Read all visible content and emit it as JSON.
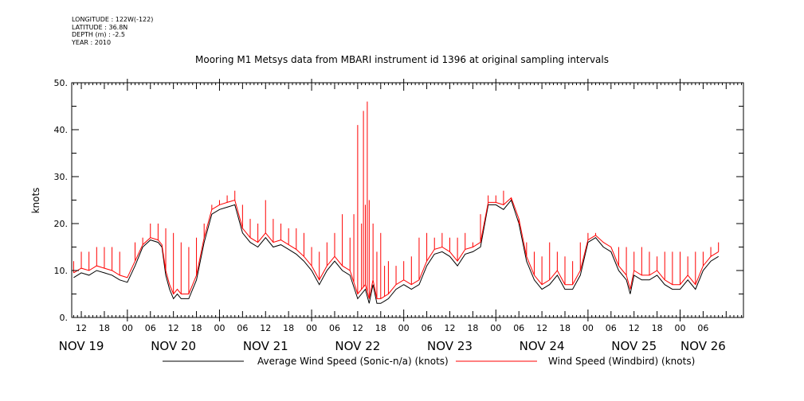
{
  "header": {
    "longitude": "LONGITUDE : 122W(-122)",
    "latitude": "LATITUDE : 36.8N",
    "depth": "DEPTH (m) : -2.5",
    "year": "YEAR : 2010"
  },
  "chart_data": {
    "type": "line",
    "title": "Mooring M1 Metsys data from MBARI instrument id 1396 at original sampling intervals",
    "ylabel": "knots",
    "xlabel": "",
    "ylim": [
      0,
      50
    ],
    "yticks": [
      0,
      10,
      20,
      30,
      40,
      50
    ],
    "ytick_labels": [
      "0.",
      "10.",
      "20.",
      "30.",
      "40.",
      "50."
    ],
    "xlim_hours": [
      -14.5,
      160.5
    ],
    "hour_tick_labels": [
      {
        "hour": -12,
        "label": "12"
      },
      {
        "hour": -6,
        "label": "18"
      },
      {
        "hour": 0,
        "label": "00"
      },
      {
        "hour": 6,
        "label": "06"
      },
      {
        "hour": 12,
        "label": "12"
      },
      {
        "hour": 18,
        "label": "18"
      },
      {
        "hour": 24,
        "label": "00"
      },
      {
        "hour": 30,
        "label": "06"
      },
      {
        "hour": 36,
        "label": "12"
      },
      {
        "hour": 42,
        "label": "18"
      },
      {
        "hour": 48,
        "label": "00"
      },
      {
        "hour": 54,
        "label": "06"
      },
      {
        "hour": 60,
        "label": "12"
      },
      {
        "hour": 66,
        "label": "18"
      },
      {
        "hour": 72,
        "label": "00"
      },
      {
        "hour": 78,
        "label": "06"
      },
      {
        "hour": 84,
        "label": "12"
      },
      {
        "hour": 90,
        "label": "18"
      },
      {
        "hour": 96,
        "label": "00"
      },
      {
        "hour": 102,
        "label": "06"
      },
      {
        "hour": 108,
        "label": "12"
      },
      {
        "hour": 114,
        "label": "18"
      },
      {
        "hour": 120,
        "label": "00"
      },
      {
        "hour": 126,
        "label": "06"
      },
      {
        "hour": 132,
        "label": "12"
      },
      {
        "hour": 138,
        "label": "18"
      },
      {
        "hour": 144,
        "label": "00"
      },
      {
        "hour": 150,
        "label": "06"
      }
    ],
    "date_labels": [
      {
        "hour": -12,
        "label": "NOV 19"
      },
      {
        "hour": 12,
        "label": "NOV 20"
      },
      {
        "hour": 36,
        "label": "NOV 21"
      },
      {
        "hour": 60,
        "label": "NOV 22"
      },
      {
        "hour": 84,
        "label": "NOV 23"
      },
      {
        "hour": 108,
        "label": "NOV 24"
      },
      {
        "hour": 132,
        "label": "NOV 25"
      },
      {
        "hour": 150,
        "label": "NOV 26"
      }
    ],
    "grid": false,
    "legend": "bottom",
    "series": [
      {
        "name": "Average Wind Speed (Sonic-n/a) (knots)",
        "color": "#000000",
        "x": [
          -14,
          -12,
          -10,
          -8,
          -6,
          -4,
          -2,
          0,
          2,
          4,
          6,
          8,
          9,
          10,
          11,
          12,
          13,
          14,
          16,
          18,
          19,
          20,
          22,
          24,
          26,
          28,
          30,
          32,
          34,
          36,
          38,
          40,
          42,
          44,
          46,
          48,
          50,
          52,
          54,
          56,
          58,
          60,
          62,
          63,
          64,
          65,
          66,
          67,
          68,
          70,
          72,
          74,
          76,
          78,
          80,
          82,
          84,
          86,
          88,
          90,
          92,
          94,
          96,
          98,
          100,
          102,
          104,
          106,
          108,
          110,
          112,
          114,
          116,
          118,
          120,
          122,
          124,
          126,
          128,
          130,
          131,
          132,
          134,
          136,
          138,
          140,
          142,
          144,
          146,
          148,
          150,
          152,
          154
        ],
        "y": [
          8.5,
          9.5,
          9,
          10,
          9.5,
          9,
          8,
          7.5,
          11,
          15,
          16.5,
          16,
          15,
          9,
          6,
          4,
          5,
          4,
          4,
          8,
          12,
          16,
          22,
          23,
          23.5,
          24,
          18,
          16,
          15,
          17,
          15,
          15.5,
          14.5,
          13.5,
          12,
          10,
          7,
          10,
          12,
          10,
          9,
          4,
          6,
          3,
          7,
          3,
          3,
          3.5,
          4,
          6,
          7,
          6,
          7,
          11,
          13.5,
          14,
          13,
          11,
          13.5,
          14,
          15,
          24,
          24,
          23,
          25,
          20,
          12,
          8,
          6,
          7,
          9,
          6,
          6,
          9,
          16,
          17,
          15,
          14,
          10,
          8,
          5,
          9,
          8,
          8,
          9,
          7,
          6,
          6,
          8,
          6,
          10,
          12,
          13
        ]
      },
      {
        "name": "Wind Speed (Windbird) (knots)",
        "color": "#ff0000",
        "x": [
          -14,
          -12,
          -10,
          -8,
          -6,
          -4,
          -2,
          0,
          2,
          4,
          6,
          8,
          9,
          10,
          11,
          12,
          13,
          14,
          16,
          18,
          19,
          20,
          22,
          24,
          26,
          28,
          30,
          32,
          34,
          36,
          38,
          40,
          42,
          44,
          46,
          48,
          50,
          52,
          54,
          56,
          58,
          60,
          62,
          63,
          64,
          65,
          66,
          67,
          68,
          70,
          72,
          74,
          76,
          78,
          80,
          82,
          84,
          86,
          88,
          90,
          92,
          94,
          96,
          98,
          100,
          102,
          104,
          106,
          108,
          110,
          112,
          114,
          116,
          118,
          120,
          122,
          124,
          126,
          128,
          130,
          131,
          132,
          134,
          136,
          138,
          140,
          142,
          144,
          146,
          148,
          150,
          152,
          154
        ],
        "y": [
          9.5,
          10.5,
          10,
          11,
          10.5,
          10,
          9,
          8.5,
          12,
          15.5,
          17,
          16.5,
          15.5,
          10,
          7,
          5,
          6,
          5,
          5,
          9,
          13,
          17,
          23,
          24,
          24.5,
          25,
          19,
          17,
          16,
          18,
          16,
          16.5,
          15.5,
          14.5,
          13,
          11,
          8,
          11,
          13,
          11,
          10,
          5,
          7,
          4,
          8,
          4,
          4,
          4.5,
          5,
          7,
          8,
          7,
          8,
          12,
          14.5,
          15,
          14,
          12,
          14.5,
          15,
          16,
          24.5,
          24.5,
          24,
          25.5,
          21,
          13,
          9,
          7,
          8,
          10,
          7,
          7,
          10,
          16.5,
          17.5,
          16,
          15,
          11,
          9,
          6,
          10,
          9,
          9,
          10,
          8,
          7,
          7,
          9,
          7,
          11,
          13,
          14
        ],
        "spikes": [
          [
            -14,
            12
          ],
          [
            -12,
            14
          ],
          [
            -10,
            14
          ],
          [
            -8,
            15
          ],
          [
            -6,
            15
          ],
          [
            -4,
            15
          ],
          [
            -2,
            14
          ],
          [
            2,
            16
          ],
          [
            4,
            17
          ],
          [
            6,
            20
          ],
          [
            8,
            20
          ],
          [
            10,
            19
          ],
          [
            12,
            18
          ],
          [
            14,
            16
          ],
          [
            16,
            15
          ],
          [
            18,
            17
          ],
          [
            20,
            20
          ],
          [
            22,
            24
          ],
          [
            24,
            25
          ],
          [
            26,
            26
          ],
          [
            28,
            27
          ],
          [
            30,
            24
          ],
          [
            32,
            21
          ],
          [
            34,
            20
          ],
          [
            36,
            25
          ],
          [
            38,
            21
          ],
          [
            40,
            20
          ],
          [
            42,
            19
          ],
          [
            44,
            19
          ],
          [
            46,
            18
          ],
          [
            48,
            15
          ],
          [
            50,
            14
          ],
          [
            52,
            16
          ],
          [
            54,
            18
          ],
          [
            56,
            22
          ],
          [
            58,
            17
          ],
          [
            59,
            22
          ],
          [
            60,
            41
          ],
          [
            61,
            20
          ],
          [
            61.5,
            44
          ],
          [
            62,
            24
          ],
          [
            62.5,
            46
          ],
          [
            63,
            25
          ],
          [
            64,
            20
          ],
          [
            65,
            14
          ],
          [
            66,
            18
          ],
          [
            67,
            11
          ],
          [
            68,
            12
          ],
          [
            70,
            11
          ],
          [
            72,
            12
          ],
          [
            74,
            13
          ],
          [
            76,
            17
          ],
          [
            78,
            18
          ],
          [
            80,
            17
          ],
          [
            82,
            18
          ],
          [
            84,
            17
          ],
          [
            86,
            17
          ],
          [
            88,
            18
          ],
          [
            90,
            16
          ],
          [
            92,
            22
          ],
          [
            94,
            26
          ],
          [
            96,
            26
          ],
          [
            98,
            27
          ],
          [
            100,
            25
          ],
          [
            102,
            20
          ],
          [
            104,
            16
          ],
          [
            106,
            14
          ],
          [
            108,
            13
          ],
          [
            110,
            16
          ],
          [
            112,
            14
          ],
          [
            114,
            13
          ],
          [
            116,
            12
          ],
          [
            118,
            16
          ],
          [
            120,
            18
          ],
          [
            122,
            18
          ],
          [
            124,
            16
          ],
          [
            126,
            15
          ],
          [
            128,
            15
          ],
          [
            130,
            15
          ],
          [
            132,
            14
          ],
          [
            134,
            15
          ],
          [
            136,
            14
          ],
          [
            138,
            13
          ],
          [
            140,
            14
          ],
          [
            142,
            14
          ],
          [
            144,
            14
          ],
          [
            146,
            13
          ],
          [
            148,
            14
          ],
          [
            150,
            14
          ],
          [
            152,
            15
          ],
          [
            154,
            16
          ]
        ]
      }
    ]
  }
}
